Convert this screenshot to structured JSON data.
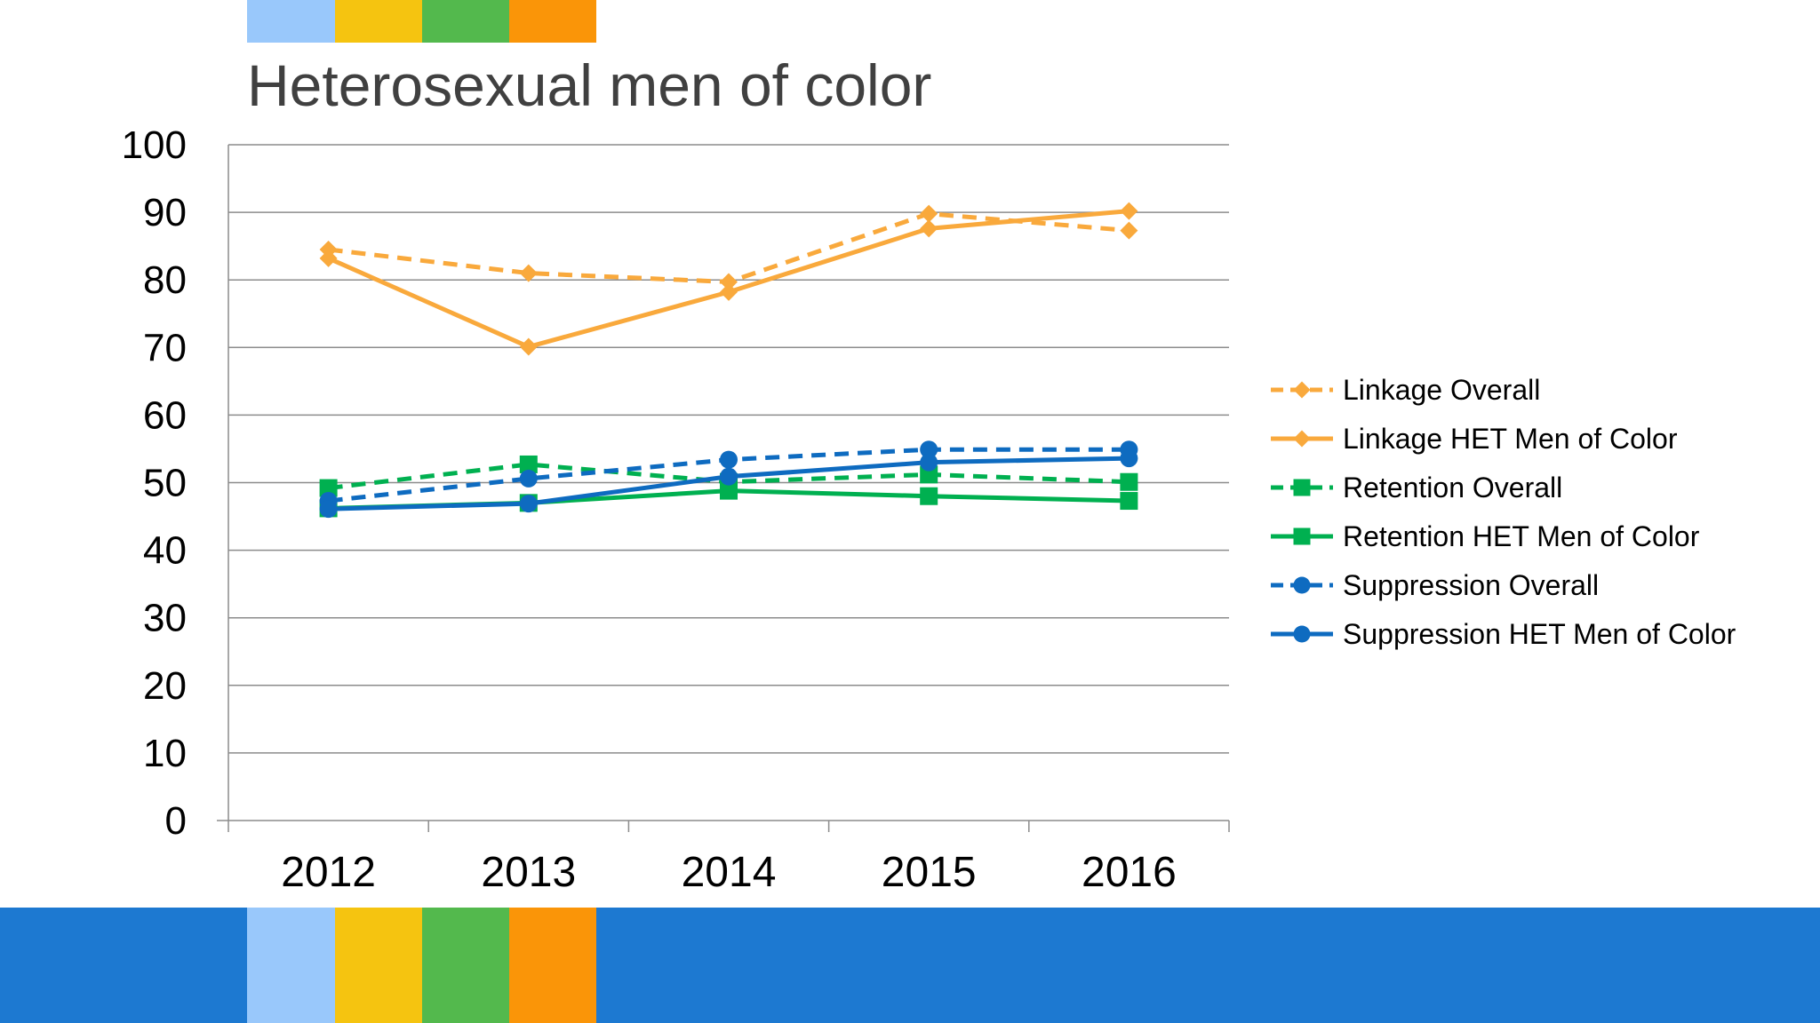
{
  "slide": {
    "title": "Heterosexual men of color",
    "colors": {
      "light_blue": "#99c8fb",
      "yellow": "#f5c410",
      "green": "#53b94d",
      "orange": "#fa9508",
      "band_blue": "#1d79d1"
    }
  },
  "chart_data": {
    "type": "line",
    "title": "Heterosexual men of color",
    "xlabel": "",
    "ylabel": "",
    "categories": [
      "2012",
      "2013",
      "2014",
      "2015",
      "2016"
    ],
    "ylim": [
      0,
      100
    ],
    "yticks": [
      "0",
      "10",
      "20",
      "30",
      "40",
      "50",
      "60",
      "70",
      "80",
      "90",
      "100"
    ],
    "grid": true,
    "legend": "right",
    "series": [
      {
        "name": "Linkage Overall",
        "values": [
          84.5,
          81,
          79.7,
          89.8,
          87.3
        ],
        "color": "#f9a93c",
        "dash": true,
        "marker": "diamond"
      },
      {
        "name": "Linkage HET Men of Color",
        "values": [
          83.2,
          70.1,
          78.2,
          87.6,
          90.2
        ],
        "color": "#f9a93c",
        "dash": false,
        "marker": "diamond"
      },
      {
        "name": "Retention Overall",
        "values": [
          49.2,
          52.7,
          50.1,
          51.2,
          50.1
        ],
        "color": "#00b050",
        "dash": true,
        "marker": "square"
      },
      {
        "name": "Retention HET Men of Color",
        "values": [
          46.2,
          47,
          48.8,
          48,
          47.3
        ],
        "color": "#00b050",
        "dash": false,
        "marker": "square"
      },
      {
        "name": "Suppression Overall",
        "values": [
          47.3,
          50.6,
          53.4,
          54.9,
          54.9
        ],
        "color": "#0e6bc0",
        "dash": true,
        "marker": "circle"
      },
      {
        "name": "Suppression HET Men of Color",
        "values": [
          46.1,
          46.9,
          50.9,
          53,
          53.6
        ],
        "color": "#0e6bc0",
        "dash": false,
        "marker": "circle"
      }
    ]
  }
}
